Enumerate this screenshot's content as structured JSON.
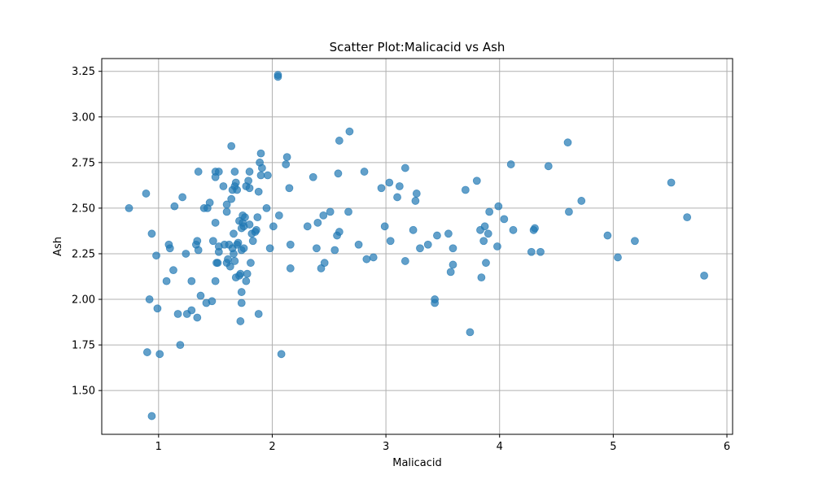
{
  "chart_data": {
    "type": "scatter",
    "title": "Scatter Plot:Malicacid vs Ash",
    "xlabel": "Malicacid",
    "ylabel": "Ash",
    "xlim": [
      0.5,
      6.05
    ],
    "ylim": [
      1.26,
      3.32
    ],
    "xticks": [
      1,
      2,
      3,
      4,
      5,
      6
    ],
    "yticks": [
      1.5,
      1.75,
      2.0,
      2.25,
      2.5,
      2.75,
      3.0,
      3.25
    ],
    "xtick_labels": [
      "1",
      "2",
      "3",
      "4",
      "5",
      "6"
    ],
    "ytick_labels": [
      "1.50",
      "1.75",
      "2.00",
      "2.25",
      "2.50",
      "2.75",
      "3.00",
      "3.25"
    ],
    "grid": true,
    "marker_color": "#1f77b4",
    "marker_alpha": 0.7,
    "points": [
      [
        0.74,
        2.5
      ],
      [
        0.89,
        2.58
      ],
      [
        0.9,
        1.71
      ],
      [
        0.92,
        2.0
      ],
      [
        0.94,
        2.36
      ],
      [
        0.94,
        1.36
      ],
      [
        0.98,
        2.24
      ],
      [
        0.99,
        1.95
      ],
      [
        1.01,
        1.7
      ],
      [
        1.07,
        2.1
      ],
      [
        1.09,
        2.3
      ],
      [
        1.1,
        2.28
      ],
      [
        1.13,
        2.16
      ],
      [
        1.14,
        2.51
      ],
      [
        1.17,
        1.92
      ],
      [
        1.19,
        1.75
      ],
      [
        1.21,
        2.56
      ],
      [
        1.24,
        2.25
      ],
      [
        1.25,
        1.92
      ],
      [
        1.29,
        2.1
      ],
      [
        1.29,
        1.94
      ],
      [
        1.33,
        2.3
      ],
      [
        1.34,
        2.32
      ],
      [
        1.35,
        2.7
      ],
      [
        1.35,
        2.27
      ],
      [
        1.34,
        1.9
      ],
      [
        1.37,
        2.02
      ],
      [
        1.4,
        2.5
      ],
      [
        1.42,
        1.98
      ],
      [
        1.43,
        2.5
      ],
      [
        1.45,
        2.53
      ],
      [
        1.47,
        1.99
      ],
      [
        1.48,
        2.32
      ],
      [
        1.5,
        2.1
      ],
      [
        1.5,
        2.42
      ],
      [
        1.5,
        2.7
      ],
      [
        1.5,
        2.67
      ],
      [
        1.51,
        2.2
      ],
      [
        1.52,
        2.2
      ],
      [
        1.53,
        2.7
      ],
      [
        1.53,
        2.29
      ],
      [
        1.53,
        2.26
      ],
      [
        1.57,
        2.62
      ],
      [
        1.58,
        2.3
      ],
      [
        1.6,
        2.48
      ],
      [
        1.6,
        2.52
      ],
      [
        1.6,
        2.2
      ],
      [
        1.61,
        2.22
      ],
      [
        1.62,
        2.3
      ],
      [
        1.63,
        2.18
      ],
      [
        1.64,
        2.84
      ],
      [
        1.64,
        2.55
      ],
      [
        1.65,
        2.28
      ],
      [
        1.65,
        2.6
      ],
      [
        1.66,
        2.36
      ],
      [
        1.66,
        2.25
      ],
      [
        1.67,
        2.21
      ],
      [
        1.67,
        2.7
      ],
      [
        1.67,
        2.62
      ],
      [
        1.68,
        2.64
      ],
      [
        1.68,
        2.12
      ],
      [
        1.69,
        2.6
      ],
      [
        1.69,
        2.3
      ],
      [
        1.7,
        2.31
      ],
      [
        1.71,
        2.43
      ],
      [
        1.71,
        2.13
      ],
      [
        1.72,
        2.14
      ],
      [
        1.72,
        1.88
      ],
      [
        1.73,
        2.04
      ],
      [
        1.73,
        1.98
      ],
      [
        1.73,
        2.27
      ],
      [
        1.73,
        2.39
      ],
      [
        1.74,
        2.46
      ],
      [
        1.74,
        2.42
      ],
      [
        1.75,
        2.28
      ],
      [
        1.75,
        2.4
      ],
      [
        1.76,
        2.45
      ],
      [
        1.77,
        2.1
      ],
      [
        1.77,
        2.62
      ],
      [
        1.78,
        2.14
      ],
      [
        1.79,
        2.65
      ],
      [
        1.8,
        2.7
      ],
      [
        1.8,
        2.61
      ],
      [
        1.8,
        2.41
      ],
      [
        1.81,
        2.2
      ],
      [
        1.82,
        2.36
      ],
      [
        1.83,
        2.32
      ],
      [
        1.85,
        2.37
      ],
      [
        1.86,
        2.38
      ],
      [
        1.87,
        2.45
      ],
      [
        1.88,
        1.92
      ],
      [
        1.88,
        2.59
      ],
      [
        1.89,
        2.75
      ],
      [
        1.9,
        2.8
      ],
      [
        1.9,
        2.68
      ],
      [
        1.91,
        2.72
      ],
      [
        1.95,
        2.5
      ],
      [
        1.96,
        2.68
      ],
      [
        1.98,
        2.28
      ],
      [
        2.01,
        2.4
      ],
      [
        2.05,
        3.23
      ],
      [
        2.05,
        3.22
      ],
      [
        2.06,
        2.46
      ],
      [
        2.08,
        1.7
      ],
      [
        2.12,
        2.74
      ],
      [
        2.13,
        2.78
      ],
      [
        2.15,
        2.61
      ],
      [
        2.16,
        2.3
      ],
      [
        2.16,
        2.17
      ],
      [
        2.31,
        2.4
      ],
      [
        2.36,
        2.67
      ],
      [
        2.39,
        2.28
      ],
      [
        2.4,
        2.42
      ],
      [
        2.43,
        2.17
      ],
      [
        2.45,
        2.46
      ],
      [
        2.46,
        2.2
      ],
      [
        2.51,
        2.48
      ],
      [
        2.55,
        2.27
      ],
      [
        2.57,
        2.35
      ],
      [
        2.58,
        2.69
      ],
      [
        2.59,
        2.37
      ],
      [
        2.59,
        2.87
      ],
      [
        2.67,
        2.48
      ],
      [
        2.68,
        2.92
      ],
      [
        2.76,
        2.3
      ],
      [
        2.81,
        2.7
      ],
      [
        2.83,
        2.22
      ],
      [
        2.89,
        2.23
      ],
      [
        2.96,
        2.61
      ],
      [
        2.99,
        2.4
      ],
      [
        3.03,
        2.64
      ],
      [
        3.04,
        2.32
      ],
      [
        3.1,
        2.56
      ],
      [
        3.12,
        2.62
      ],
      [
        3.17,
        2.72
      ],
      [
        3.17,
        2.21
      ],
      [
        3.24,
        2.38
      ],
      [
        3.26,
        2.54
      ],
      [
        3.27,
        2.58
      ],
      [
        3.3,
        2.28
      ],
      [
        3.37,
        2.3
      ],
      [
        3.43,
        2.0
      ],
      [
        3.43,
        1.98
      ],
      [
        3.45,
        2.35
      ],
      [
        3.55,
        2.36
      ],
      [
        3.57,
        2.15
      ],
      [
        3.59,
        2.19
      ],
      [
        3.59,
        2.28
      ],
      [
        3.7,
        2.6
      ],
      [
        3.74,
        1.82
      ],
      [
        3.8,
        2.65
      ],
      [
        3.83,
        2.38
      ],
      [
        3.84,
        2.12
      ],
      [
        3.86,
        2.32
      ],
      [
        3.87,
        2.4
      ],
      [
        3.88,
        2.2
      ],
      [
        3.9,
        2.36
      ],
      [
        3.91,
        2.48
      ],
      [
        3.98,
        2.29
      ],
      [
        3.99,
        2.51
      ],
      [
        4.04,
        2.44
      ],
      [
        4.1,
        2.74
      ],
      [
        4.12,
        2.38
      ],
      [
        4.28,
        2.26
      ],
      [
        4.3,
        2.38
      ],
      [
        4.31,
        2.39
      ],
      [
        4.36,
        2.26
      ],
      [
        4.43,
        2.73
      ],
      [
        4.6,
        2.86
      ],
      [
        4.61,
        2.48
      ],
      [
        4.72,
        2.54
      ],
      [
        4.95,
        2.35
      ],
      [
        5.04,
        2.23
      ],
      [
        5.19,
        2.32
      ],
      [
        5.51,
        2.64
      ],
      [
        5.65,
        2.45
      ],
      [
        5.8,
        2.13
      ]
    ]
  }
}
